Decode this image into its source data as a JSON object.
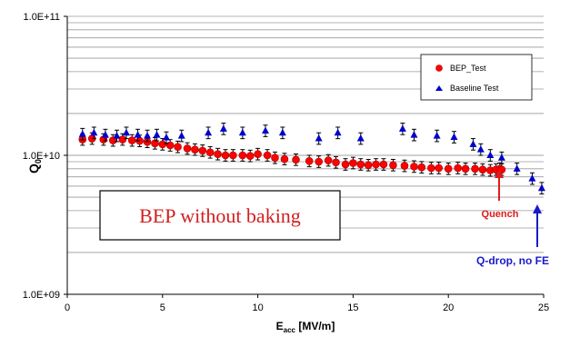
{
  "chart_data": {
    "type": "scatter",
    "xlabel_main": "E",
    "xlabel_sub": "acc",
    "xlabel_unit": " [MV/m]",
    "ylabel_main": "Q",
    "ylabel_sub": "0",
    "xlim": [
      0,
      25
    ],
    "ylim": [
      1000000000.0,
      100000000000.0
    ],
    "y_scale": "log",
    "grid": "horizontal",
    "x_tick_labels": [
      "0",
      "5",
      "10",
      "15",
      "20",
      "25"
    ],
    "y_tick_labels": [
      "1.0E+09",
      "1.0E+10",
      "1.0E+11"
    ],
    "legend": {
      "placement": "top-right",
      "entries": [
        "BEP_Test",
        "Baseline Test"
      ]
    },
    "series": [
      {
        "name": "BEP_Test",
        "marker": "circle",
        "color": "#ff0000",
        "x": [
          0.8,
          1.3,
          1.9,
          2.4,
          2.9,
          3.4,
          3.8,
          4.2,
          4.6,
          5.0,
          5.4,
          5.8,
          6.3,
          6.7,
          7.1,
          7.5,
          7.9,
          8.3,
          8.7,
          9.2,
          9.6,
          10.0,
          10.5,
          10.9,
          11.4,
          12.0,
          12.7,
          13.2,
          13.7,
          14.1,
          14.6,
          15.0,
          15.4,
          15.8,
          16.2,
          16.6,
          17.1,
          17.7,
          18.2,
          18.6,
          19.1,
          19.5,
          20.0,
          20.5,
          20.9,
          21.4,
          21.8,
          22.2,
          22.5,
          22.7,
          22.8
        ],
        "y": [
          13000000000.0,
          13200000000.0,
          13000000000.0,
          12800000000.0,
          13000000000.0,
          12800000000.0,
          12700000000.0,
          12500000000.0,
          12200000000.0,
          12000000000.0,
          11800000000.0,
          11500000000.0,
          11200000000.0,
          11000000000.0,
          10800000000.0,
          10500000000.0,
          10200000000.0,
          10000000000.0,
          10000000000.0,
          10000000000.0,
          9900000000.0,
          10200000000.0,
          10000000000.0,
          9600000000.0,
          9400000000.0,
          9300000000.0,
          9100000000.0,
          9000000000.0,
          9200000000.0,
          8900000000.0,
          8600000000.0,
          8800000000.0,
          8600000000.0,
          8500000000.0,
          8600000000.0,
          8600000000.0,
          8500000000.0,
          8400000000.0,
          8300000000.0,
          8200000000.0,
          8100000000.0,
          8100000000.0,
          8000000000.0,
          8100000000.0,
          8000000000.0,
          8000000000.0,
          7900000000.0,
          7800000000.0,
          7900000000.0,
          8000000000.0,
          7900000000.0
        ]
      },
      {
        "name": "Baseline Test",
        "marker": "triangle",
        "color": "#0000cc",
        "x": [
          0.8,
          1.4,
          2.0,
          2.6,
          3.1,
          3.7,
          4.2,
          4.7,
          5.2,
          6.0,
          7.4,
          8.2,
          9.2,
          10.4,
          11.3,
          13.2,
          14.2,
          15.4,
          17.6,
          18.2,
          19.4,
          20.3,
          21.3,
          21.7,
          22.2,
          22.8,
          23.6,
          24.4,
          24.9
        ],
        "y": [
          14200000000.0,
          14500000000.0,
          14000000000.0,
          13800000000.0,
          14500000000.0,
          14000000000.0,
          13800000000.0,
          14000000000.0,
          13400000000.0,
          13800000000.0,
          14500000000.0,
          15500000000.0,
          14500000000.0,
          15000000000.0,
          14500000000.0,
          13200000000.0,
          14500000000.0,
          13200000000.0,
          15500000000.0,
          14000000000.0,
          13800000000.0,
          13500000000.0,
          12000000000.0,
          11000000000.0,
          10000000000.0,
          9600000000.0,
          8000000000.0,
          6800000000.0,
          5800000000.0
        ]
      }
    ],
    "annotations": {
      "box_text": "BEP without baking",
      "quench_label": "Quench",
      "quench_color": "#e01b1b",
      "qdrop_label": "Q-drop, no FE",
      "qdrop_color": "#1a1acc"
    }
  }
}
